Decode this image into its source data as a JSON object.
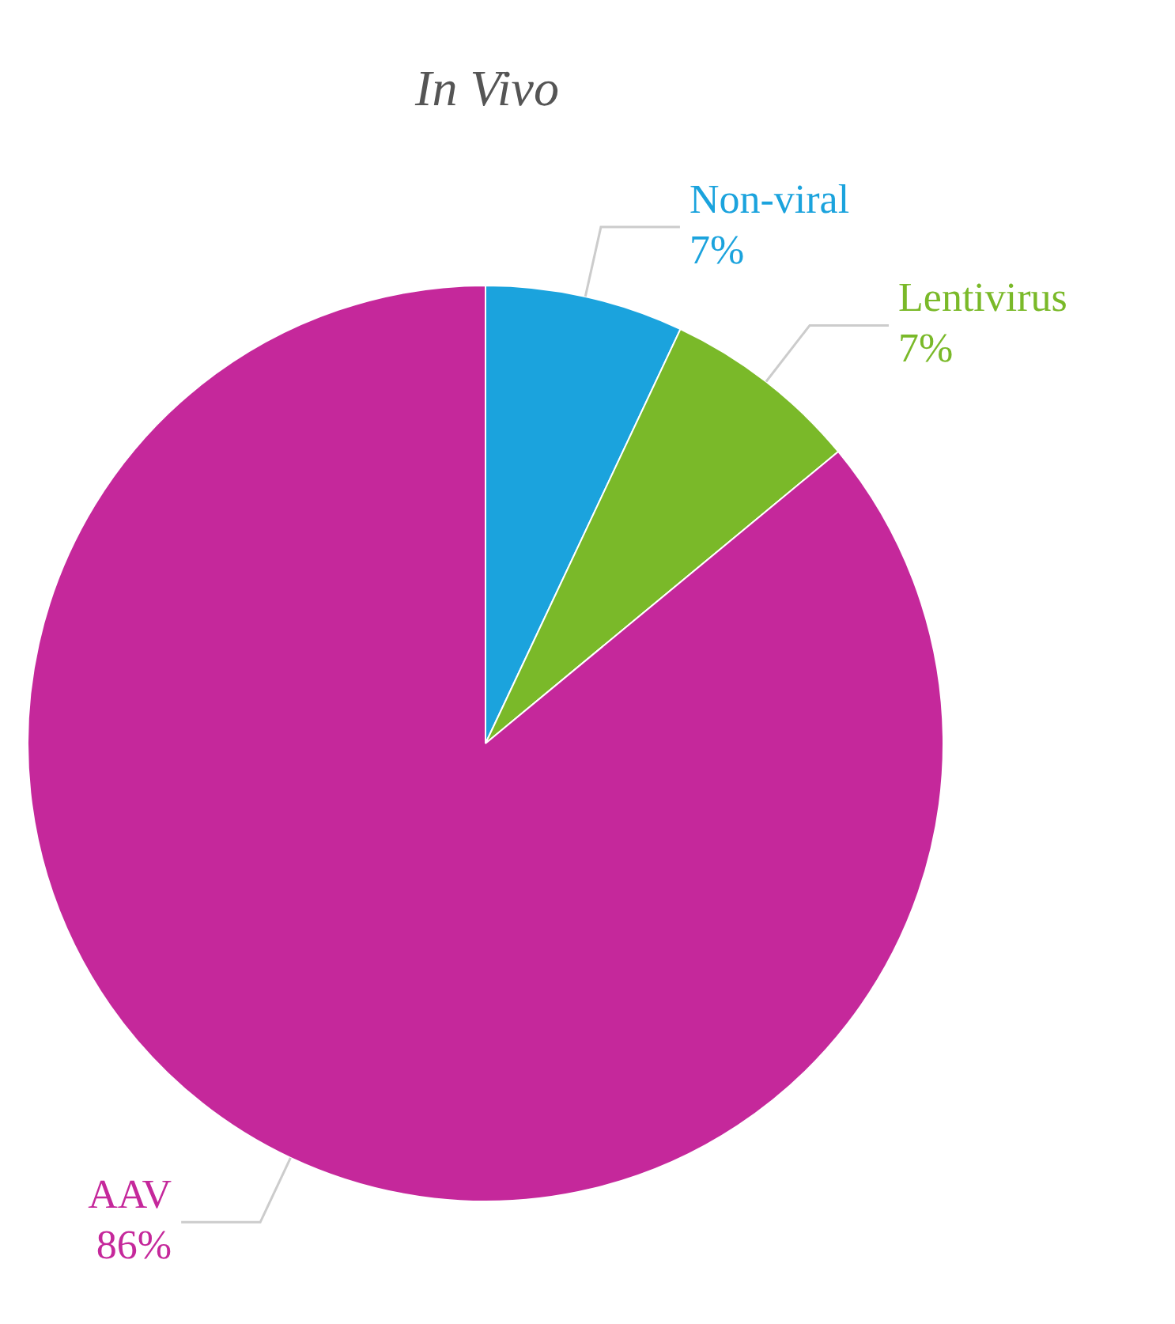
{
  "chart_data": {
    "type": "pie",
    "title": "In Vivo",
    "categories": [
      "Non-viral",
      "Lentivirus",
      "AAV"
    ],
    "values": [
      7,
      7,
      86
    ],
    "colors": [
      "#1ba3dd",
      "#7ab929",
      "#c5289b"
    ],
    "value_labels": [
      "7%",
      "7%",
      "86%"
    ],
    "legend": false
  }
}
